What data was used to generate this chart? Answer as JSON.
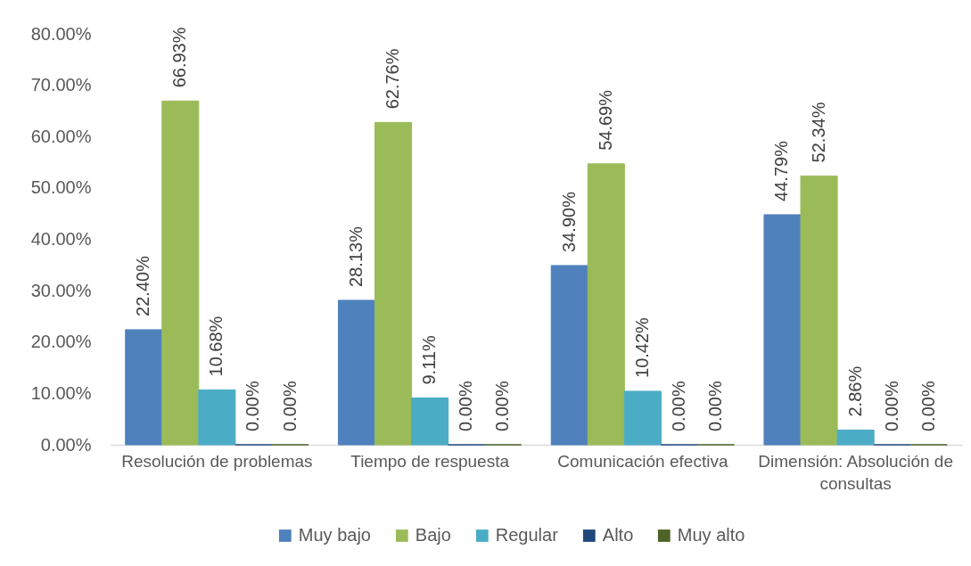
{
  "chart_data": {
    "type": "bar",
    "categories": [
      "Resolución de problemas",
      "Tiempo de respuesta",
      "Comunicación efectiva",
      "Dimensión: Absolución de consultas"
    ],
    "series": [
      {
        "name": "Muy bajo",
        "color": "#4f81bd",
        "values": [
          22.4,
          28.13,
          34.9,
          44.79
        ],
        "value_labels": [
          "22.40%",
          "28.13%",
          "34.90%",
          "44.79%"
        ]
      },
      {
        "name": "Bajo",
        "color": "#9bbb59",
        "values": [
          66.93,
          62.76,
          54.69,
          52.34
        ],
        "value_labels": [
          "66.93%",
          "62.76%",
          "54.69%",
          "52.34%"
        ]
      },
      {
        "name": "Regular",
        "color": "#4bacc6",
        "values": [
          10.68,
          9.11,
          10.42,
          2.86
        ],
        "value_labels": [
          "10.68%",
          "9.11%",
          "10.42%",
          "2.86%"
        ]
      },
      {
        "name": "Alto",
        "color": "#1f497d",
        "values": [
          0,
          0,
          0,
          0
        ],
        "value_labels": [
          "0.00%",
          "0.00%",
          "0.00%",
          "0.00%"
        ]
      },
      {
        "name": "Muy alto",
        "color": "#4f6228",
        "values": [
          0,
          0,
          0,
          0
        ],
        "value_labels": [
          "0.00%",
          "0.00%",
          "0.00%",
          "0.00%"
        ]
      }
    ],
    "ylim": [
      0,
      80
    ],
    "yticks": [
      {
        "value": 0,
        "label": "0.00%"
      },
      {
        "value": 10,
        "label": "10.00%"
      },
      {
        "value": 20,
        "label": "20.00%"
      },
      {
        "value": 30,
        "label": "30.00%"
      },
      {
        "value": 40,
        "label": "40.00%"
      },
      {
        "value": 50,
        "label": "50.00%"
      },
      {
        "value": 60,
        "label": "60.00%"
      },
      {
        "value": 70,
        "label": "70.00%"
      },
      {
        "value": 80,
        "label": "80.00%"
      }
    ],
    "legend": "bottom"
  }
}
